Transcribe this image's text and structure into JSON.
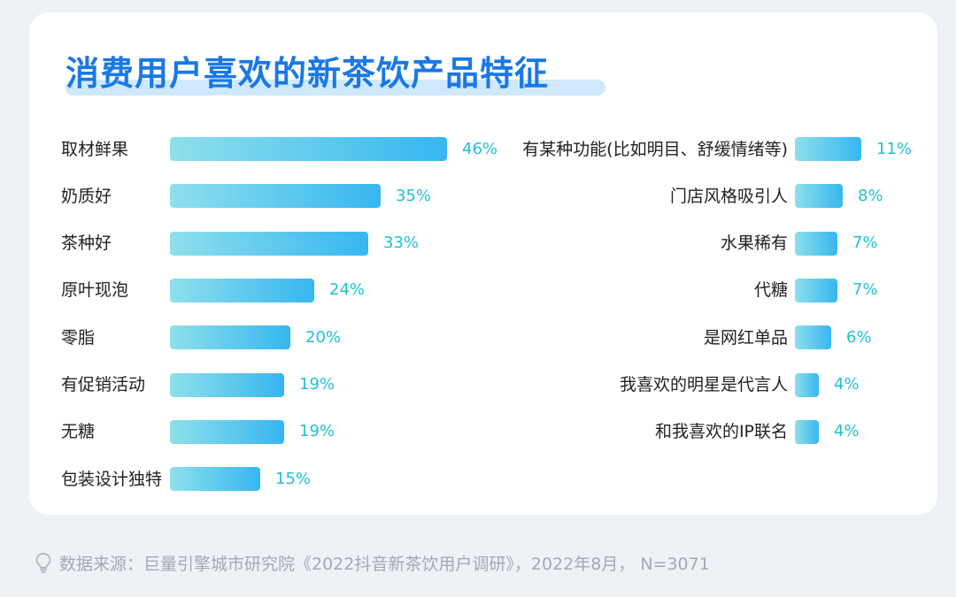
{
  "title": "消费用户喜欢的新茶饮产品特征",
  "chart_data": [
    {
      "type": "bar",
      "orientation": "horizontal",
      "categories": [
        "取材鲜果",
        "奶质好",
        "茶种好",
        "原叶现泡",
        "零脂",
        "有促销活动",
        "无糖",
        "包装设计独特"
      ],
      "values": [
        46,
        35,
        33,
        24,
        20,
        19,
        19,
        15
      ],
      "value_labels": [
        "46%",
        "35%",
        "33%",
        "24%",
        "20%",
        "19%",
        "19%",
        "15%"
      ],
      "unit": "%",
      "bar_color_start": "#8ee0ec",
      "bar_color_end": "#36b6f0"
    },
    {
      "type": "bar",
      "orientation": "horizontal",
      "categories": [
        "有某种功能(比如明目、舒缓情绪等)",
        "门店风格吸引人",
        "水果稀有",
        "代糖",
        "是网红单品",
        "我喜欢的明星是代言人",
        "和我喜欢的IP联名"
      ],
      "values": [
        11,
        8,
        7,
        7,
        6,
        4,
        4
      ],
      "value_labels": [
        "11%",
        "8%",
        "7%",
        "7%",
        "6%",
        "4%",
        "4%"
      ],
      "unit": "%",
      "bar_color_start": "#8ee0ec",
      "bar_color_end": "#36b6f0"
    }
  ],
  "footer": {
    "icon": "lightbulb-icon",
    "text": "数据来源：巨量引擎城市研究院《2022抖音新茶饮用户调研》，2022年8月，  N=3071"
  },
  "colors": {
    "title": "#1a78e6",
    "value_text": "#1fc0d8",
    "footer_text": "#a4a9b3"
  }
}
